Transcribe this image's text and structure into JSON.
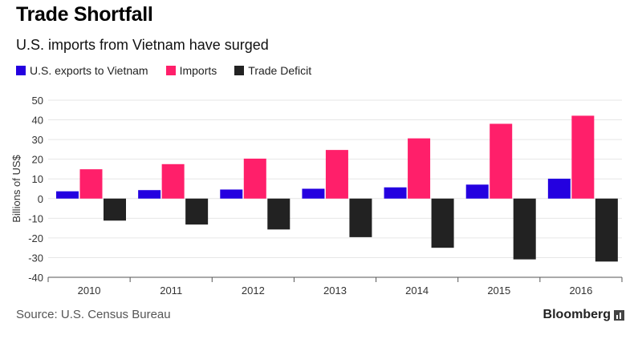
{
  "chart_data": {
    "type": "bar",
    "title": "Trade Shortfall",
    "subtitle": "U.S. imports from Vietnam have surged",
    "categories": [
      "2010",
      "2011",
      "2012",
      "2013",
      "2014",
      "2015",
      "2016"
    ],
    "series": [
      {
        "name": "U.S. exports to Vietnam",
        "color": "#2400e0",
        "values": [
          3.7,
          4.3,
          4.6,
          5.0,
          5.7,
          7.1,
          10.1
        ]
      },
      {
        "name": "Imports",
        "color": "#ff1f6a",
        "values": [
          14.9,
          17.5,
          20.3,
          24.7,
          30.6,
          38.0,
          42.1
        ]
      },
      {
        "name": "Trade Deficit",
        "color": "#222222",
        "values": [
          -11.2,
          -13.2,
          -15.7,
          -19.6,
          -25.0,
          -30.9,
          -32.0
        ]
      }
    ],
    "xlabel": "",
    "ylabel": "Billions of US$",
    "ylim": [
      -40,
      50
    ],
    "yticks": [
      50,
      40,
      30,
      20,
      10,
      0,
      -10,
      -20,
      -30,
      -40
    ],
    "grid": true,
    "legend": "top-left"
  },
  "footer": {
    "source": "Source: U.S. Census Bureau",
    "brand": "Bloomberg"
  }
}
